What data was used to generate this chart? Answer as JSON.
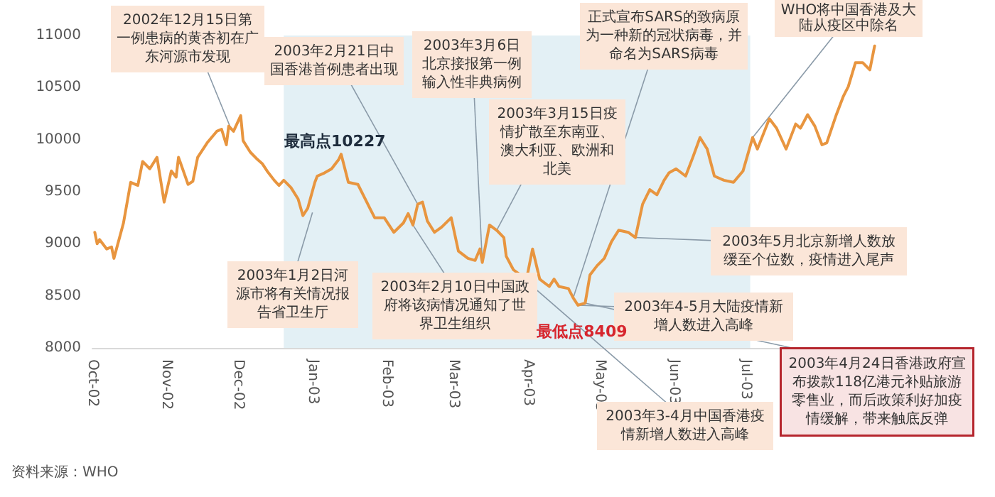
{
  "chart_data": {
    "type": "line",
    "x": [
      "2002-10-02",
      "2002-10-03",
      "2002-10-04",
      "2002-10-07",
      "2002-10-09",
      "2002-10-10",
      "2002-10-14",
      "2002-10-17",
      "2002-10-20",
      "2002-10-22",
      "2002-10-25",
      "2002-10-28",
      "2002-10-31",
      "2002-11-03",
      "2002-11-05",
      "2002-11-06",
      "2002-11-10",
      "2002-11-12",
      "2002-11-14",
      "2002-11-18",
      "2002-11-22",
      "2002-11-24",
      "2002-11-26",
      "2002-11-27",
      "2002-11-29",
      "2002-12-02",
      "2002-12-03",
      "2002-12-06",
      "2002-12-09",
      "2002-12-11",
      "2002-12-13",
      "2002-12-16",
      "2002-12-18",
      "2002-12-20",
      "2002-12-23",
      "2002-12-26",
      "2002-12-28",
      "2002-12-30",
      "2003-01-02",
      "2003-01-03",
      "2003-01-06",
      "2003-01-09",
      "2003-01-12",
      "2003-01-13",
      "2003-01-16",
      "2003-01-20",
      "2003-01-25",
      "2003-01-27",
      "2003-01-31",
      "2003-02-04",
      "2003-02-08",
      "2003-02-10",
      "2003-02-12",
      "2003-02-14",
      "2003-02-16",
      "2003-02-18",
      "2003-02-21",
      "2003-02-24",
      "2003-02-28",
      "2003-03-03",
      "2003-03-07",
      "2003-03-10",
      "2003-03-12",
      "2003-03-13",
      "2003-03-16",
      "2003-03-19",
      "2003-03-22",
      "2003-03-23",
      "2003-03-26",
      "2003-03-29",
      "2003-03-31",
      "2003-04-01",
      "2003-04-03",
      "2003-04-06",
      "2003-04-10",
      "2003-04-12",
      "2003-04-14",
      "2003-04-18",
      "2003-04-20",
      "2003-04-22",
      "2003-04-25",
      "2003-04-27",
      "2003-04-30",
      "2003-05-03",
      "2003-05-06",
      "2003-05-09",
      "2003-05-13",
      "2003-05-16",
      "2003-05-19",
      "2003-05-22",
      "2003-05-25",
      "2003-05-28",
      "2003-05-30",
      "2003-06-02",
      "2003-06-06",
      "2003-06-09",
      "2003-06-12",
      "2003-06-15",
      "2003-06-18",
      "2003-06-22",
      "2003-06-26",
      "2003-06-30",
      "2003-07-04",
      "2003-07-06",
      "2003-07-11",
      "2003-07-14",
      "2003-07-18",
      "2003-07-22",
      "2003-07-24",
      "2003-07-27",
      "2003-07-30",
      "2003-08-02",
      "2003-08-04",
      "2003-08-08",
      "2003-08-11",
      "2003-08-13",
      "2003-08-16",
      "2003-08-19",
      "2003-08-22",
      "2003-08-24"
    ],
    "series": [
      {
        "color": "#e8953f",
        "values": [
          9110,
          9000,
          9040,
          8950,
          8970,
          8860,
          9200,
          9590,
          9560,
          9790,
          9720,
          9830,
          9400,
          9700,
          9640,
          9830,
          9570,
          9600,
          9830,
          9970,
          10080,
          10100,
          9950,
          10130,
          10080,
          10230,
          9990,
          9880,
          9810,
          9770,
          9700,
          9610,
          9560,
          9610,
          9540,
          9430,
          9270,
          9340,
          9590,
          9650,
          9680,
          9720,
          9810,
          9860,
          9590,
          9570,
          9340,
          9250,
          9250,
          9110,
          9200,
          9290,
          9180,
          9380,
          9400,
          9220,
          9110,
          9160,
          9250,
          8930,
          8860,
          8840,
          8950,
          8820,
          9180,
          9130,
          9060,
          8880,
          8750,
          8700,
          null,
          8720,
          8950,
          8660,
          8590,
          8660,
          8590,
          8570,
          8480,
          8410,
          8430,
          8700,
          8790,
          8860,
          9020,
          9130,
          9110,
          9060,
          9380,
          9520,
          9470,
          9610,
          9680,
          9720,
          9650,
          9830,
          10020,
          9910,
          9650,
          9610,
          9590,
          9700,
          10020,
          9910,
          10200,
          10110,
          9910,
          10150,
          10110,
          10240,
          10130,
          9950,
          9970,
          10240,
          10420,
          10510,
          10740,
          10740,
          10670,
          10900
        ]
      }
    ],
    "xlim": [
      "2002-10-01",
      "2003-08-25"
    ],
    "xticks": [
      {
        "value": "2002-10-01",
        "label": "Oct-02"
      },
      {
        "value": "2002-11-01",
        "label": "Nov-02"
      },
      {
        "value": "2002-12-01",
        "label": "Dec-02"
      },
      {
        "value": "2003-01-01",
        "label": "Jan-03"
      },
      {
        "value": "2003-02-01",
        "label": "Feb-03"
      },
      {
        "value": "2003-03-01",
        "label": "Mar-03"
      },
      {
        "value": "2003-04-01",
        "label": "Apr-03"
      },
      {
        "value": "2003-05-01",
        "label": "May-03"
      },
      {
        "value": "2003-06-01",
        "label": "Jun-03"
      },
      {
        "value": "2003-07-01",
        "label": "Jul-03"
      }
    ],
    "ylim": [
      8000,
      11000
    ],
    "yticks": [
      8000,
      8500,
      9000,
      9500,
      10000,
      10500,
      11000
    ],
    "grid": false,
    "marker": "none",
    "line_style": "solid",
    "bands": [
      {
        "axis": "x",
        "from": "2002-12-20",
        "to": "2003-07-03",
        "color": "#e3f0f5"
      }
    ],
    "annotations": [
      {
        "text": "2002年12月15日第一例患病的黄杏初在广东河源市发现",
        "x": "2002-11-28",
        "y": 10100
      },
      {
        "text": "2003年1月2日河源市将有关情况报告省卫生厅",
        "x": "2003-01-01",
        "y": 9300
      },
      {
        "text": "2003年2月21日中国香港首例患者出现",
        "x": "2003-02-14",
        "y": 9380
      },
      {
        "text": "2003年2月10日中国政府将该病情况通知了世界卫生组织",
        "x": "2003-02-12",
        "y": 9180
      },
      {
        "text": "2003年3月6日北京接报第一例输入性非典病例",
        "x": "2003-03-13",
        "y": 8820
      },
      {
        "text": "2003年3月15日疫情扩散至东南亚、澳大利亚、欧洲和北美",
        "x": "2003-03-19",
        "y": 9130
      },
      {
        "text": "正式宣布SARS的致病原为一种新的冠状病毒，并命名为SARS病毒",
        "x": "2003-04-20",
        "y": 8480
      },
      {
        "text": "WHO将中国香港及大陆从疫区中除名",
        "x": "2003-07-04",
        "y": 10020
      },
      {
        "text": "2003年5月北京新增人数放缓至个位数，疫情进入尾声",
        "x": "2003-05-16",
        "y": 9060
      },
      {
        "text": "2003年4-5月大陆疫情新增人数进入高峰",
        "x": "2003-04-22",
        "y": 8409
      },
      {
        "text": "2003年3-4月中国香港疫情新增人数进入高峰",
        "x": "2003-03-26",
        "y": 8750
      },
      {
        "text": "2003年4月24日香港政府宣布拨款118亿港元补贴旅游零售业，而后政策利好加疫情缓解，带来触底反弹",
        "x": "2003-04-25",
        "y": 8430
      },
      "最高点10227",
      {
        "text": "最低点8409",
        "x": "2003-04-22",
        "y": 8409
      },
      "资料来源：WHO"
    ]
  }
}
